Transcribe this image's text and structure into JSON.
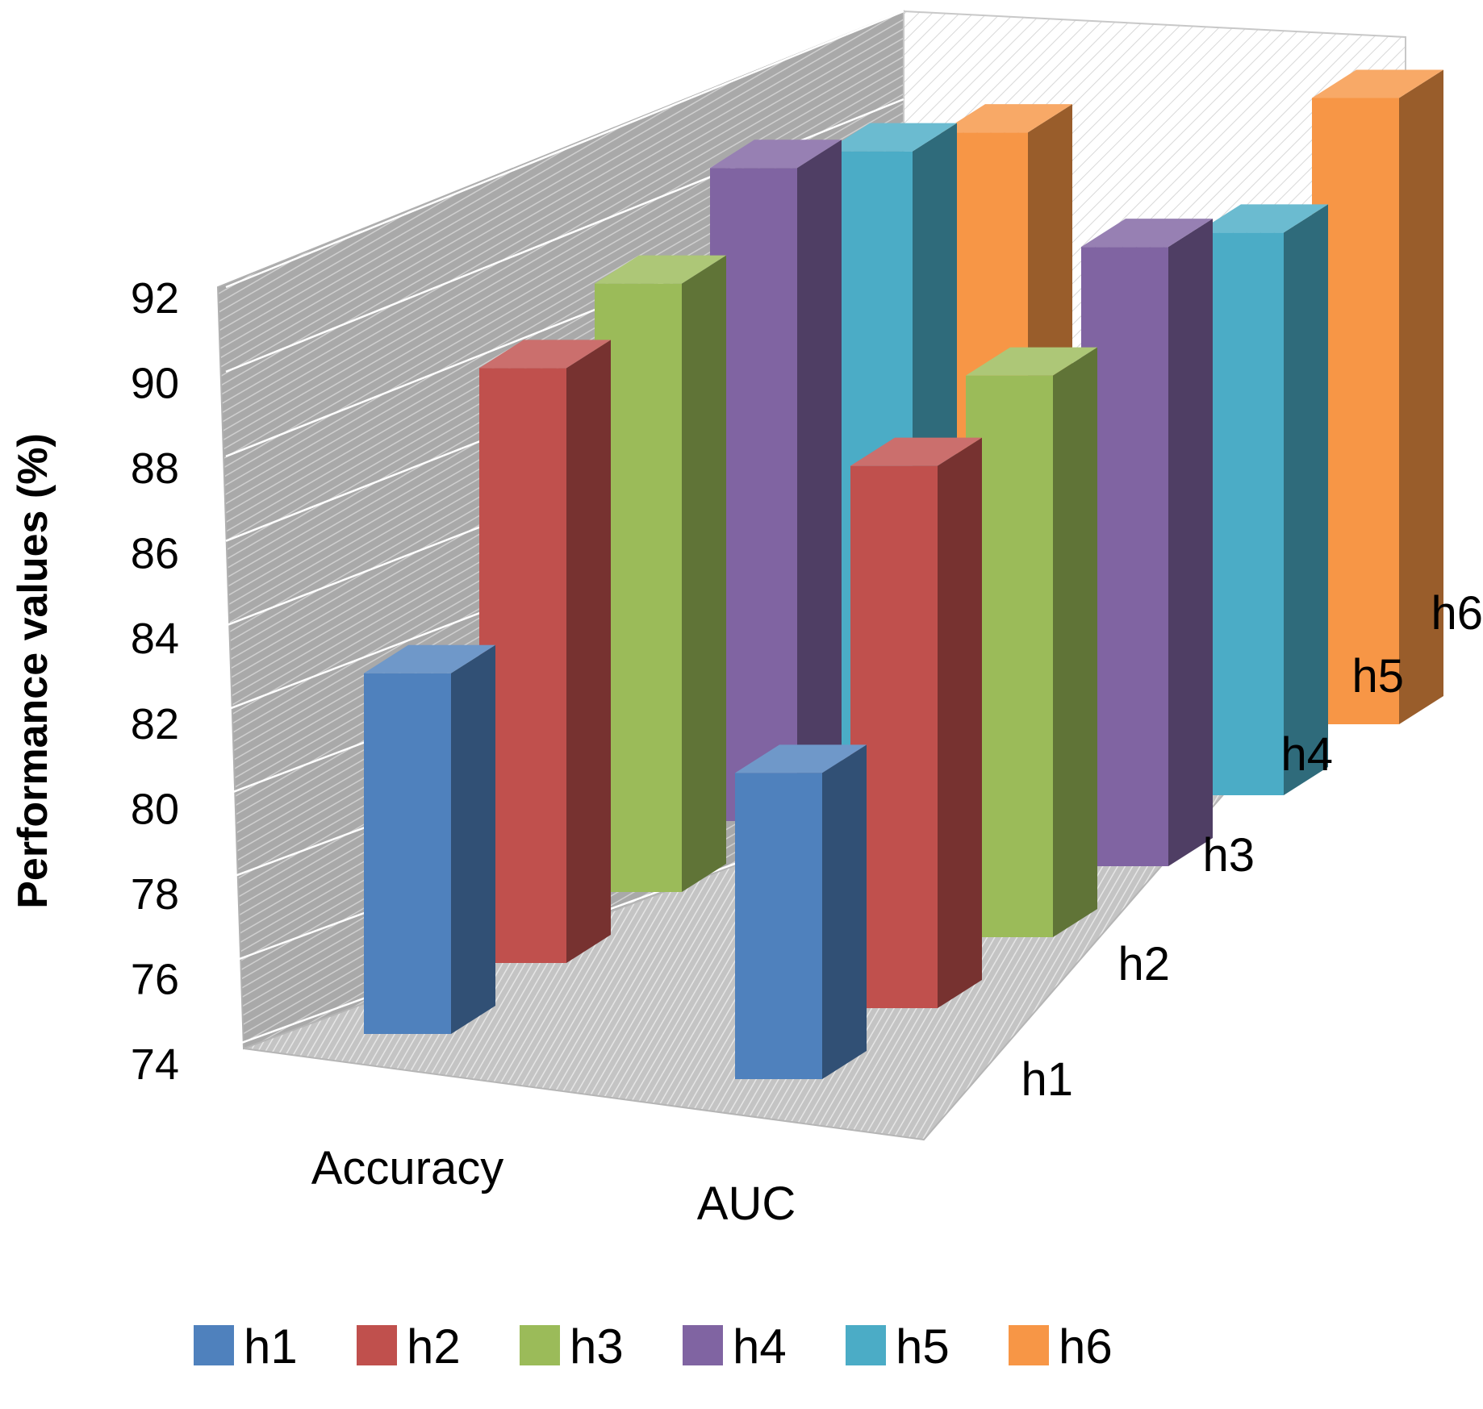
{
  "chart_data": {
    "type": "bar",
    "variant": "3d-bar",
    "categories": [
      "Accuracy",
      "AUC"
    ],
    "ylabel": "Performance values (%)",
    "xlabel": "",
    "ylim": [
      74,
      92
    ],
    "yticks": [
      74,
      76,
      78,
      80,
      82,
      84,
      86,
      88,
      90,
      92
    ],
    "depth_labels": [
      "h1",
      "h2",
      "h3",
      "h4",
      "h5",
      "h6"
    ],
    "grid": true,
    "legend_position": "bottom",
    "series": [
      {
        "name": "h1",
        "color": "#4f81bd",
        "values": [
          82.6,
          81.3
        ]
      },
      {
        "name": "h2",
        "color": "#c0504d",
        "values": [
          88.7,
          87.4
        ]
      },
      {
        "name": "h3",
        "color": "#9bbb59",
        "values": [
          89.6,
          88.4
        ]
      },
      {
        "name": "h4",
        "color": "#8064a2",
        "values": [
          91.4,
          90.5
        ]
      },
      {
        "name": "h5",
        "color": "#4bacc6",
        "values": [
          90.6,
          89.6
        ]
      },
      {
        "name": "h6",
        "color": "#f79646",
        "values": [
          89.8,
          92.1
        ]
      }
    ]
  }
}
